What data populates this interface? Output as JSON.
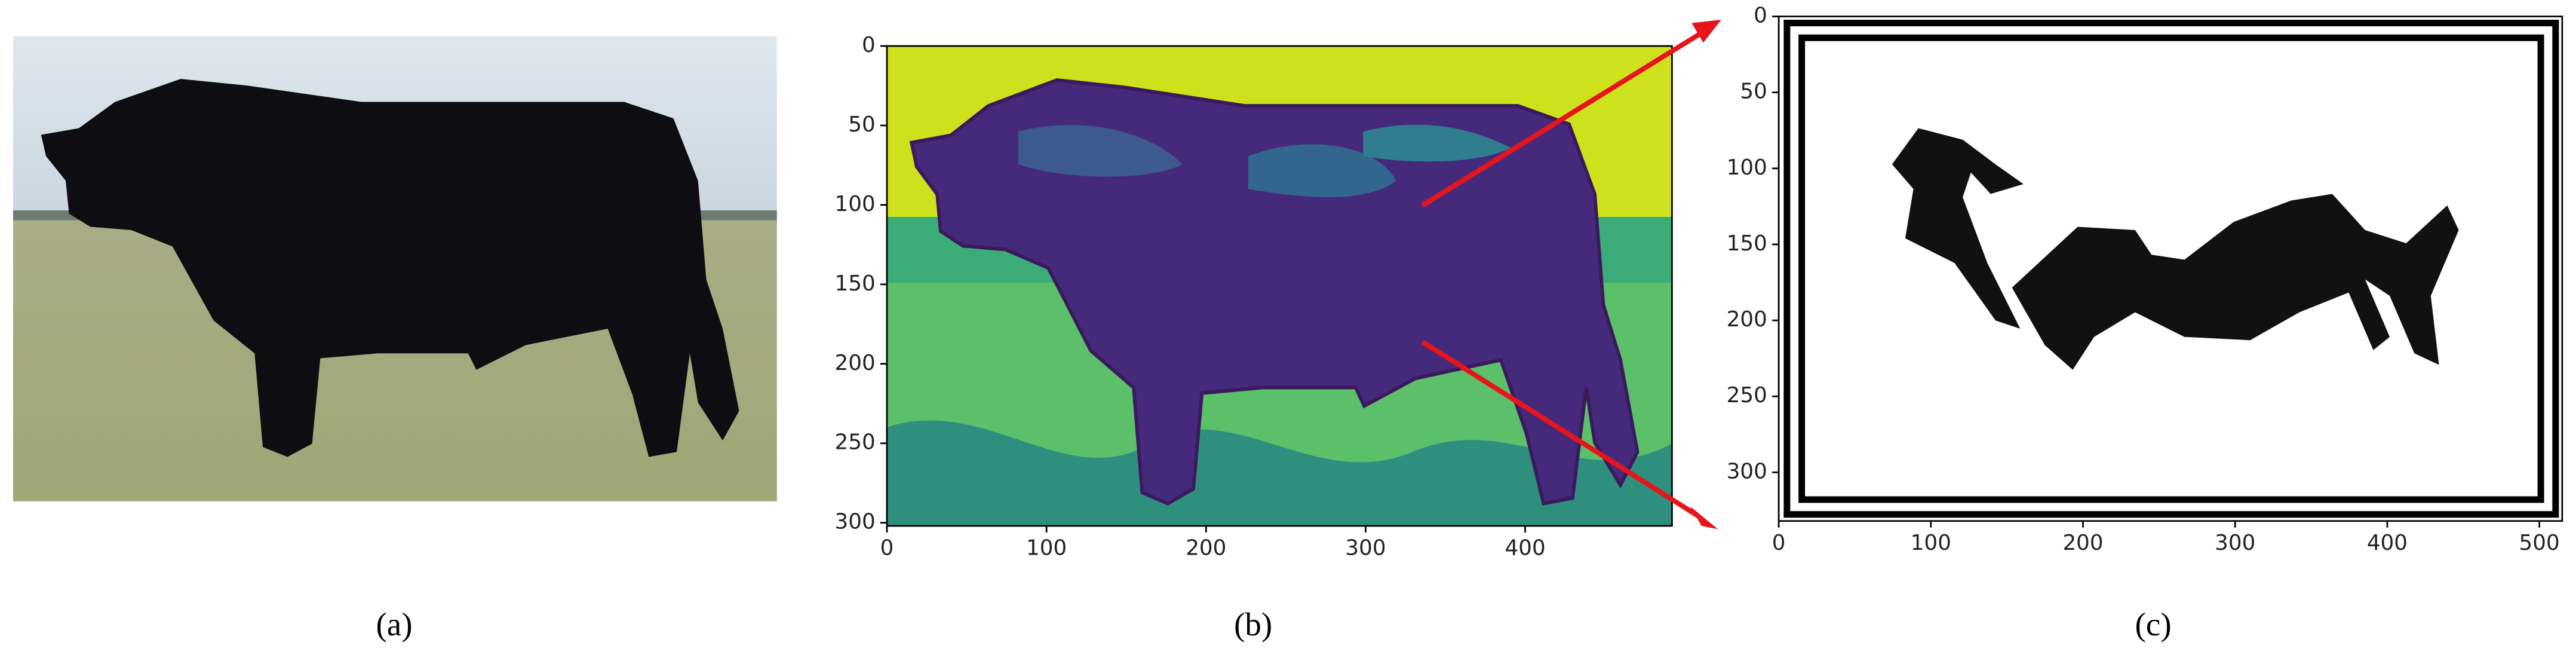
{
  "panels": [
    {
      "caption": "(a)"
    },
    {
      "caption": "(b)",
      "xlim": [
        0,
        492
      ],
      "ylim": [
        0,
        302
      ],
      "xticks": [
        0,
        100,
        200,
        300,
        400
      ],
      "yticks": [
        0,
        50,
        100,
        150,
        200,
        250,
        300
      ]
    },
    {
      "caption": "(c)",
      "xlim": [
        0,
        515
      ],
      "ylim": [
        0,
        332
      ],
      "xticks": [
        0,
        100,
        200,
        300,
        400,
        500
      ],
      "yticks": [
        0,
        50,
        100,
        150,
        200,
        250,
        300
      ]
    }
  ]
}
